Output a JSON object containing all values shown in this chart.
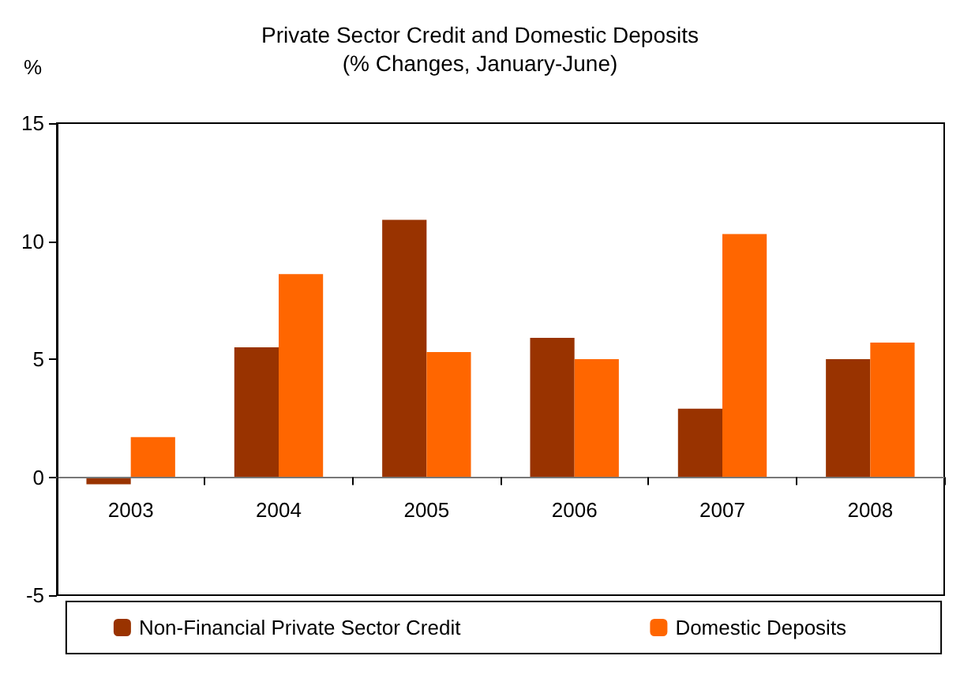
{
  "chart_data": {
    "type": "bar",
    "title": "Private Sector Credit and Domestic Deposits",
    "subtitle": "(% Changes, January-June)",
    "ylabel": "%",
    "categories": [
      "2003",
      "2004",
      "2005",
      "2006",
      "2007",
      "2008"
    ],
    "series": [
      {
        "name": "Non-Financial Private Sector Credit",
        "color": "#993300",
        "values": [
          -0.3,
          5.5,
          10.9,
          5.9,
          2.9,
          5.0
        ]
      },
      {
        "name": "Domestic Deposits",
        "color": "#ff6600",
        "values": [
          1.7,
          8.6,
          5.3,
          5.0,
          10.3,
          5.7
        ]
      }
    ],
    "ylim": [
      -5,
      15
    ],
    "yticks": [
      -5,
      0,
      5,
      10,
      15
    ],
    "grid": false,
    "legend": "bottom"
  }
}
